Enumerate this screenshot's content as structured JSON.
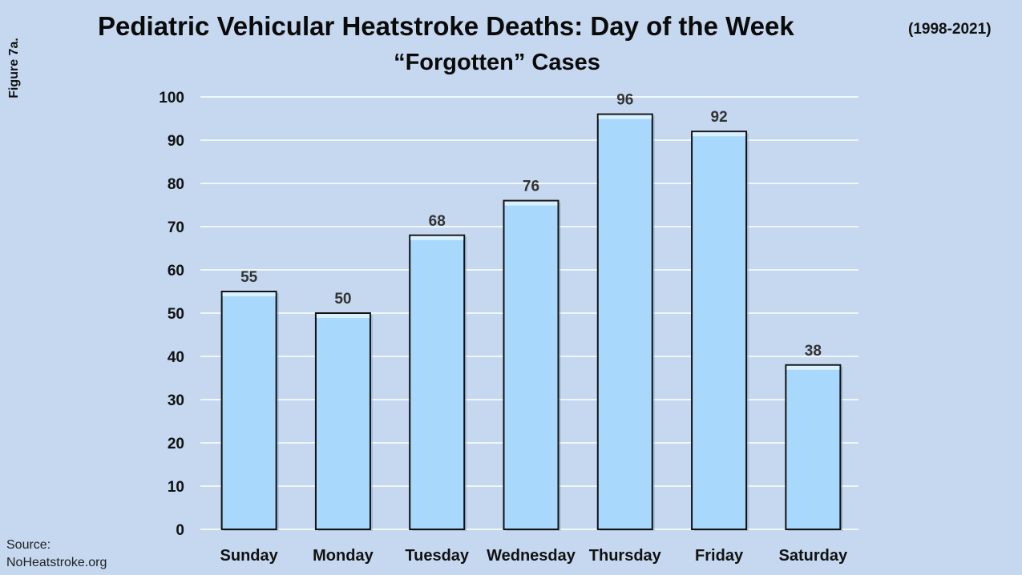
{
  "figure_label": "Figure 7a.",
  "source": {
    "line1": "Source:",
    "line2": "NoHeatstroke.org"
  },
  "chart_data": {
    "type": "bar",
    "title": "Pediatric Vehicular Heatstroke Deaths: Day of the Week",
    "period": "(1998-2021)",
    "subtitle": "“Forgotten” Cases",
    "xlabel": "",
    "ylabel": "",
    "categories": [
      "Sunday",
      "Monday",
      "Tuesday",
      "Wednesday",
      "Thursday",
      "Friday",
      "Saturday"
    ],
    "values": [
      55,
      50,
      68,
      76,
      96,
      92,
      38
    ],
    "ylim": [
      0,
      100
    ],
    "yticks": [
      0,
      10,
      20,
      30,
      40,
      50,
      60,
      70,
      80,
      90,
      100
    ],
    "grid": true,
    "legend": "none",
    "colors": {
      "bar": "#a8d8fc",
      "bar_top": "#d9f0ff",
      "bar_edge": "#111111",
      "grid": "#ffffff",
      "background": "#c5d8ef"
    }
  }
}
